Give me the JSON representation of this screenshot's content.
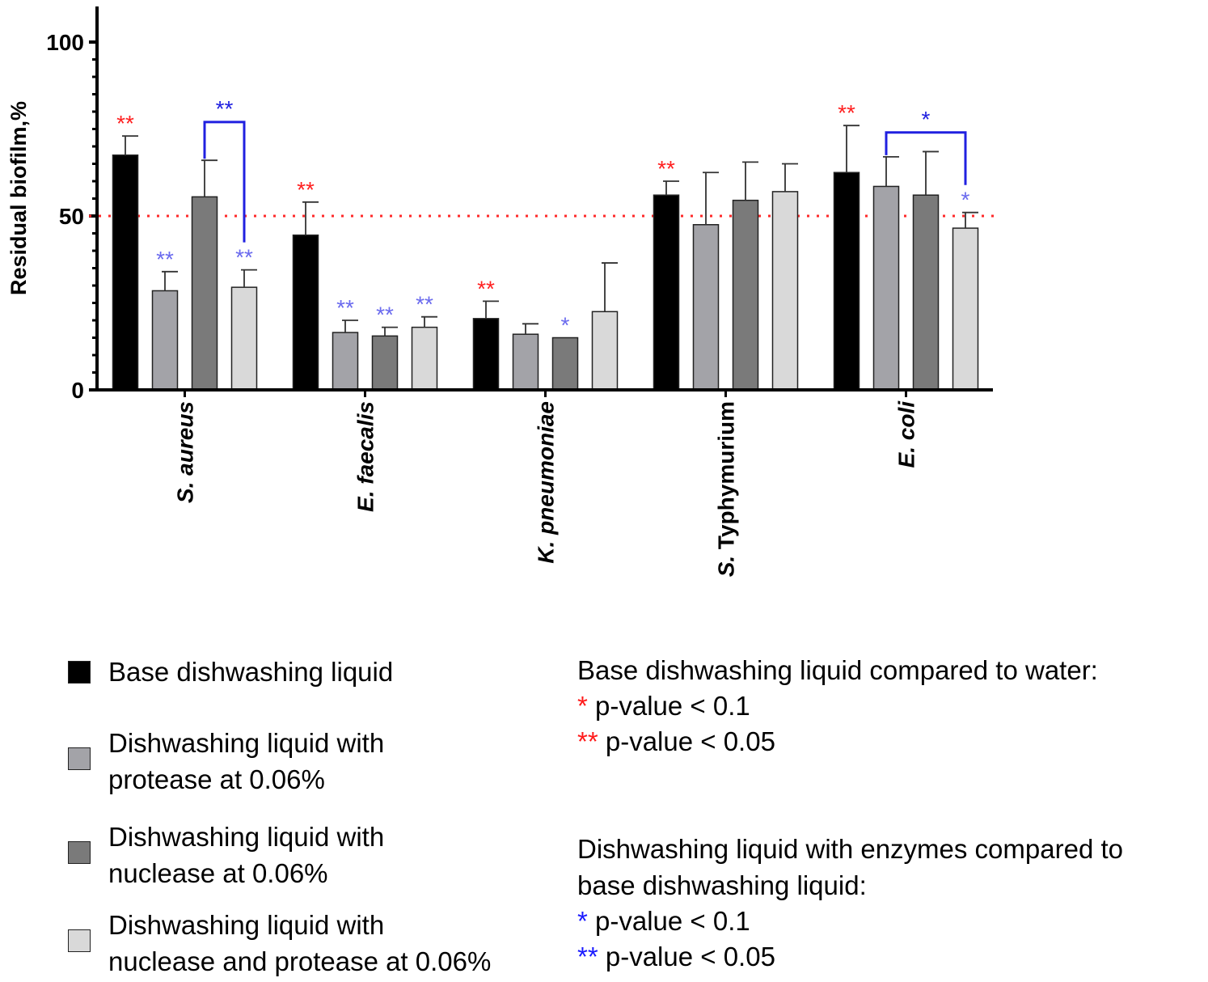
{
  "chart_data": {
    "type": "bar",
    "ylabel": "Residual biofilm,%",
    "ylim": [
      0,
      100
    ],
    "yticks": [
      0,
      50,
      100
    ],
    "threshold": 50,
    "categories": [
      "S. aureus",
      "E. faecalis",
      "K. pneumoniae",
      "S. Typhymurium",
      "E. coli"
    ],
    "series": [
      {
        "name": "Base dishwashing liquid",
        "color": "#000000",
        "values": [
          67.5,
          44.5,
          20.5,
          56,
          62.5
        ],
        "errors": [
          5.5,
          9.5,
          5,
          4,
          13.5
        ],
        "sig": [
          "**",
          "**",
          "**",
          "**",
          "**"
        ],
        "sig_color": "#ff2020"
      },
      {
        "name": "Dishwashing liquid with protease at 0.06%",
        "color": "#a3a3a8",
        "values": [
          28.5,
          16.5,
          16,
          47.5,
          58.5
        ],
        "errors": [
          5.5,
          3.5,
          3,
          15,
          8.5
        ],
        "sig": [
          "**",
          "**",
          "",
          "",
          ""
        ],
        "sig_color": "#6a6aee"
      },
      {
        "name": "Dishwashing liquid with nuclease at 0.06%",
        "color": "#7a7a7a",
        "values": [
          55.5,
          15.5,
          15,
          54.5,
          56
        ],
        "errors": [
          10.5,
          2.5,
          0,
          11,
          12.5
        ],
        "sig": [
          "",
          "**",
          "*",
          "",
          ""
        ],
        "sig_color": "#6a6aee"
      },
      {
        "name": "Dishwashing liquid with nuclease and protease at 0.06%",
        "color": "#d9d9d9",
        "values": [
          29.5,
          18,
          22.5,
          57,
          46.5
        ],
        "errors": [
          5,
          3,
          14,
          8,
          4.5
        ],
        "sig": [
          "**",
          "**",
          "",
          "",
          "*"
        ],
        "sig_color": "#6a6aee"
      }
    ],
    "brackets": [
      {
        "category": 0,
        "from_series": 2,
        "to_series": 3,
        "label": "**",
        "level": 77
      },
      {
        "category": 4,
        "from_series": 1,
        "to_series": 3,
        "label": "*",
        "level": 74
      }
    ]
  },
  "legend": {
    "items": [
      {
        "line1": "Base dishwashing liquid",
        "line2": "",
        "color": "#000000"
      },
      {
        "line1": "Dishwashing liquid with",
        "line2": "protease at 0.06%",
        "color": "#a3a3a8"
      },
      {
        "line1": "Dishwashing liquid with",
        "line2": "nuclease at 0.06%",
        "color": "#7a7a7a"
      },
      {
        "line1": "Dishwashing liquid with",
        "line2": "nuclease and protease at 0.06%",
        "color": "#d9d9d9"
      }
    ]
  },
  "significance": {
    "group1": {
      "title": "Base dishwashing liquid compared to water:",
      "star1": "*",
      "text1": " p-value <  0.1",
      "star2": "**",
      "text2": " p-value <  0.05"
    },
    "group2": {
      "title_line1": "Dishwashing liquid with enzymes compared to",
      "title_line2": "base dishwashing liquid:",
      "star1": "*",
      "text1": " p-value <  0.1",
      "star2": "**",
      "text2": " p-value < 0.05"
    }
  }
}
